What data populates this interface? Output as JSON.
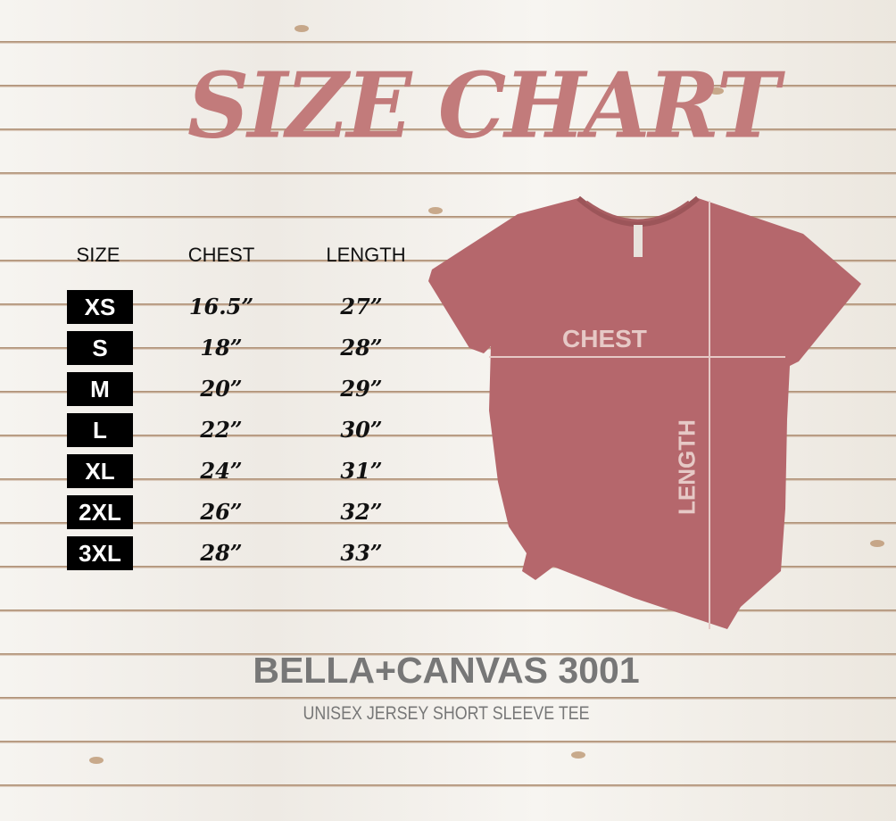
{
  "title": "SIZE CHART",
  "table": {
    "headers": [
      "SIZE",
      "CHEST",
      "LENGTH"
    ],
    "rows": [
      {
        "size": "XS",
        "chest": "16.5”",
        "length": "27”"
      },
      {
        "size": "S",
        "chest": "18”",
        "length": "28”"
      },
      {
        "size": "M",
        "chest": "20”",
        "length": "29”"
      },
      {
        "size": "L",
        "chest": "22”",
        "length": "30”"
      },
      {
        "size": "XL",
        "chest": "24”",
        "length": "31”"
      },
      {
        "size": "2XL",
        "chest": "26”",
        "length": "32”"
      },
      {
        "size": "3XL",
        "chest": "28”",
        "length": "33”"
      }
    ]
  },
  "shirt": {
    "chest_label": "CHEST",
    "length_label": "LENGTH",
    "color": "#b5676c"
  },
  "brand": "BELLA+CANVAS 3001",
  "subtitle": "UNISEX JERSEY SHORT SLEEVE TEE",
  "colors": {
    "title": "#c27b7b",
    "brand": "#777777"
  }
}
